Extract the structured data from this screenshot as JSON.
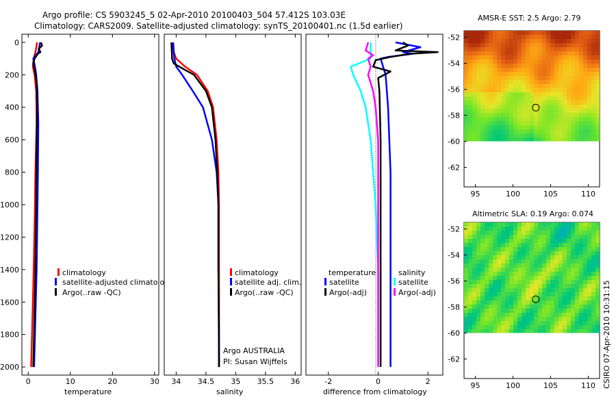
{
  "title_line1": "Argo profile: CS 5903245_5 02-Apr-2010 20100403_504 57.412S 103.03E",
  "title_line2": "Climatology: CARS2009. Satellite-adjusted climatology: synTS_20100401.nc (1.5d earlier)",
  "side_text": "CSIRO 07-Apr-2010 10:31:15",
  "chart_data": [
    {
      "id": "temperature",
      "type": "line",
      "xlabel": "temperature",
      "ylabel": "",
      "xlim": [
        -1.5,
        31
      ],
      "ylim": [
        2050,
        -50
      ],
      "xticks": [
        0,
        10,
        20,
        30
      ],
      "xtick_labels": [
        "0",
        "10",
        "20",
        "30"
      ],
      "yticks": [
        0,
        200,
        400,
        600,
        800,
        1000,
        1200,
        1400,
        1600,
        1800,
        2000
      ],
      "ytick_labels": [
        "0",
        "200",
        "400",
        "600",
        "800",
        "1000",
        "1200",
        "1400",
        "1600",
        "1800",
        "2000"
      ],
      "legend": {
        "position": "lower-right",
        "entries": [
          "climatology",
          "satellite-adjusted climatolog",
          "Argo(..raw -QC)"
        ]
      },
      "series": [
        {
          "name": "climatology",
          "color": "#ff0000",
          "depth": [
            0,
            50,
            100,
            150,
            200,
            300,
            500,
            800,
            1000,
            1400,
            1800,
            2000
          ],
          "values": [
            2.1,
            1.8,
            1.3,
            1.1,
            1.5,
            1.9,
            2.0,
            1.7,
            1.6,
            1.3,
            0.9,
            0.7
          ]
        },
        {
          "name": "satellite-adjusted climatology",
          "color": "#0000ff",
          "depth": [
            0,
            20,
            60,
            100,
            150,
            200,
            300,
            500,
            800,
            1000,
            1400,
            1800,
            2000
          ],
          "values": [
            2.8,
            2.7,
            2.4,
            1.2,
            1.6,
            1.9,
            2.2,
            2.4,
            2.3,
            2.2,
            2.0,
            1.6,
            1.4
          ]
        },
        {
          "name": "Argo(..raw -QC)",
          "color": "#000000",
          "depth": [
            0,
            20,
            40,
            60,
            70,
            100,
            130,
            180,
            250,
            400,
            600,
            1000,
            1400,
            1800,
            2000
          ],
          "values": [
            3.0,
            3.3,
            2.5,
            2.9,
            2.3,
            1.5,
            1.2,
            1.6,
            2.0,
            2.1,
            2.0,
            1.9,
            1.7,
            1.4,
            1.2
          ]
        }
      ]
    },
    {
      "id": "salinity",
      "type": "line",
      "xlabel": "salinity",
      "xlim": [
        33.8,
        36.1
      ],
      "ylim": [
        2050,
        -50
      ],
      "xticks": [
        34,
        34.5,
        35,
        35.5,
        36
      ],
      "xtick_labels": [
        "34",
        "34.5",
        "35",
        "35.5",
        "36"
      ],
      "legend": {
        "position": "lower-right",
        "entries": [
          "climatology",
          "satellite adj. clim.",
          "Argo(..raw -QC)"
        ]
      },
      "annotations": [
        "Argo AUSTRALIA",
        "PI: Susan Wijffels"
      ],
      "series": [
        {
          "name": "climatology",
          "color": "#ff0000",
          "depth": [
            0,
            60,
            100,
            150,
            200,
            300,
            400,
            600,
            800,
            1000,
            1400,
            2000
          ],
          "values": [
            33.95,
            33.96,
            34.0,
            34.15,
            34.35,
            34.53,
            34.62,
            34.68,
            34.71,
            34.72,
            34.72,
            34.72
          ]
        },
        {
          "name": "satellite adj. clim.",
          "color": "#0000ff",
          "depth": [
            0,
            60,
            100,
            150,
            200,
            300,
            400,
            600,
            800,
            1000,
            1400,
            2000
          ],
          "values": [
            33.95,
            33.96,
            33.97,
            34.0,
            34.1,
            34.28,
            34.45,
            34.6,
            34.68,
            34.71,
            34.71,
            34.72
          ]
        },
        {
          "name": "Argo(..raw -QC)",
          "color": "#000000",
          "depth": [
            0,
            80,
            100,
            130,
            170,
            200,
            300,
            400,
            600,
            800,
            1000,
            1400,
            1800,
            2000
          ],
          "values": [
            33.92,
            33.93,
            33.93,
            33.96,
            34.15,
            34.3,
            34.5,
            34.6,
            34.66,
            34.69,
            34.71,
            34.71,
            34.72,
            34.72
          ]
        }
      ]
    },
    {
      "id": "difference",
      "type": "line",
      "xlabel": "difference from climatology",
      "xlim": [
        -2.9,
        2.6
      ],
      "ylim": [
        2050,
        -50
      ],
      "xticks": [
        -2,
        0,
        2
      ],
      "xtick_labels": [
        "-2",
        "0",
        "2"
      ],
      "legend": {
        "position": "lower-center",
        "groups": [
          {
            "title": "temperature",
            "entries": [
              "satellite",
              "Argo(-adj)"
            ]
          },
          {
            "title": "salinity",
            "entries": [
              "satellite",
              "Argo(-adj)"
            ]
          }
        ]
      },
      "series": [
        {
          "name": "temperature satellite",
          "color": "#0000ff",
          "depth": [
            0,
            30,
            60,
            70,
            90,
            100,
            200,
            400,
            800,
            1200,
            2000
          ],
          "values": [
            0.7,
            1.7,
            1.0,
            1.4,
            0.4,
            0.1,
            0.3,
            0.4,
            0.5,
            0.5,
            0.5
          ]
        },
        {
          "name": "temperature Argo(-adj)",
          "color": "#000000",
          "depth": [
            0,
            20,
            50,
            60,
            70,
            90,
            110,
            150,
            180,
            220,
            300,
            600,
            1000,
            1400,
            2000
          ],
          "values": [
            1.0,
            1.2,
            0.7,
            2.4,
            1.3,
            0.5,
            -0.1,
            -0.2,
            0.5,
            0.0,
            0.05,
            0.1,
            0.1,
            0.1,
            0.1
          ]
        },
        {
          "name": "salinity satellite",
          "color": "#00ffff",
          "depth": [
            0,
            100,
            150,
            200,
            300,
            400,
            600,
            800,
            1000,
            1400,
            2000
          ],
          "values": [
            -0.3,
            -0.3,
            -1.1,
            -1.0,
            -0.7,
            -0.5,
            -0.3,
            -0.2,
            -0.1,
            0.0,
            0.0
          ]
        },
        {
          "name": "salinity Argo(-adj)",
          "color": "#ff00ff",
          "depth": [
            0,
            50,
            80,
            100,
            150,
            200,
            300,
            400,
            600,
            1000,
            1400,
            2000
          ],
          "values": [
            -0.4,
            -0.5,
            -0.2,
            -0.4,
            -0.3,
            -0.4,
            -0.2,
            -0.1,
            0.0,
            0.0,
            0.0,
            0.0
          ]
        }
      ]
    },
    {
      "id": "sst_map",
      "type": "heatmap",
      "title": "AMSR-E SST: 2.5 Argo: 2.79",
      "xlim": [
        93.5,
        111.5
      ],
      "ylim": [
        -63.5,
        -51.5
      ],
      "xticks": [
        95,
        100,
        105,
        110
      ],
      "xtick_labels": [
        "95",
        "100",
        "105",
        "110"
      ],
      "yticks": [
        -52,
        -54,
        -56,
        -58,
        -60,
        -62
      ],
      "ytick_labels": [
        "-52",
        "-54",
        "-56",
        "-58",
        "-60",
        "-62"
      ],
      "data_lat_range": [
        -60,
        -51.5
      ],
      "argo_position": {
        "lon": 103.03,
        "lat": -57.41
      }
    },
    {
      "id": "sla_map",
      "type": "heatmap",
      "title": "Altimetric SLA: 0.19 Argo: 0.074",
      "xlim": [
        93.5,
        111.5
      ],
      "ylim": [
        -63.5,
        -51.5
      ],
      "xticks": [
        95,
        100,
        105,
        110
      ],
      "xtick_labels": [
        "95",
        "100",
        "105",
        "110"
      ],
      "yticks": [
        -52,
        -54,
        -56,
        -58,
        -60,
        -62
      ],
      "ytick_labels": [
        "-52",
        "-54",
        "-56",
        "-58",
        "-60",
        "-62"
      ],
      "data_lat_range": [
        -60,
        -51.5
      ],
      "argo_position": {
        "lon": 103.03,
        "lat": -57.41
      }
    }
  ]
}
